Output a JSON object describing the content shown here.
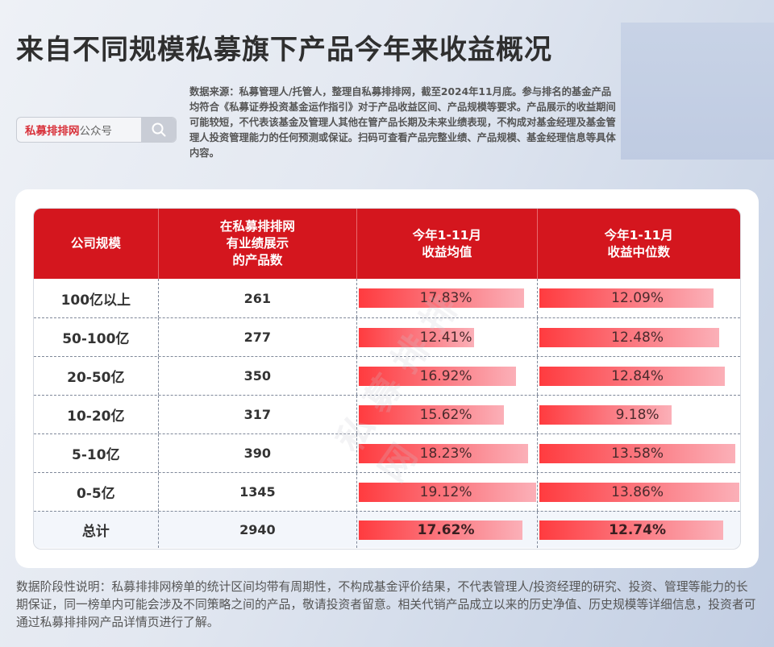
{
  "title": "来自不同规模私募旗下产品今年来收益概况",
  "search": {
    "brand": "私募排排网",
    "suffix": "公众号",
    "icon": "search-icon"
  },
  "source_note": "数据来源：私募管理人/托管人，整理自私募排排网，截至2024年11月底。参与排名的基金产品均符合《私募证券投资基金运作指引》对于产品收益区间、产品规模等要求。产品展示的收益期间可能较短，不代表该基金及管理人其他在管产品长期及未来业绩表现，不构成对基金经理及基金管理人投资管理能力的任何预测或保证。扫码可查看产品完整业绩、产品规模、基金经理信息等具体内容。",
  "table": {
    "headers": [
      "公司规模",
      "在私募排排网\n有业绩展示\n的产品数",
      "今年1-11月\n收益均值",
      "今年1-11月\n收益中位数"
    ],
    "rows": [
      {
        "scale": "100亿以上",
        "count": "261",
        "mean": "17.83%",
        "median": "12.09%"
      },
      {
        "scale": "50-100亿",
        "count": "277",
        "mean": "12.41%",
        "median": "12.48%"
      },
      {
        "scale": "20-50亿",
        "count": "350",
        "mean": "16.92%",
        "median": "12.84%"
      },
      {
        "scale": "10-20亿",
        "count": "317",
        "mean": "15.62%",
        "median": "9.18%"
      },
      {
        "scale": "5-10亿",
        "count": "390",
        "mean": "18.23%",
        "median": "13.58%"
      },
      {
        "scale": "0-5亿",
        "count": "1345",
        "mean": "19.12%",
        "median": "13.86%"
      },
      {
        "scale": "总计",
        "count": "2940",
        "mean": "17.62%",
        "median": "12.74%"
      }
    ]
  },
  "watermark": "私募排排网",
  "footer": "数据阶段性说明：私募排排网榜单的统计区间均带有周期性，不构成基金评价结果，不代表管理人/投资经理的研究、投资、管理等能力的长期保证，同一榜单内可能会涉及不同策略之间的产品，敬请投资者留意。相关代销产品成立以来的历史净值、历史规模等详细信息，投资者可通过私募排排网产品详情页进行了解。",
  "colors": {
    "header_red": "#d4161e",
    "bar_start": "#ff3b3f",
    "bar_end": "#fbb0b8",
    "brand_red": "#d8313a"
  },
  "chart_data": {
    "type": "table",
    "title": "来自不同规模私募旗下产品今年来收益概况",
    "categories": [
      "100亿以上",
      "50-100亿",
      "20-50亿",
      "10-20亿",
      "5-10亿",
      "0-5亿",
      "总计"
    ],
    "columns": [
      "公司规模",
      "在私募排排网有业绩展示的产品数",
      "今年1-11月收益均值",
      "今年1-11月收益中位数"
    ],
    "series": [
      {
        "name": "在私募排排网有业绩展示的产品数",
        "values": [
          261,
          277,
          350,
          317,
          390,
          1345,
          2940
        ]
      },
      {
        "name": "今年1-11月收益均值(%)",
        "values": [
          17.83,
          12.41,
          16.92,
          15.62,
          18.23,
          19.12,
          17.62
        ]
      },
      {
        "name": "今年1-11月收益中位数(%)",
        "values": [
          12.09,
          12.48,
          12.84,
          9.18,
          13.58,
          13.86,
          12.74
        ]
      }
    ],
    "bar_max": {
      "mean": 19.12,
      "median": 13.86
    }
  }
}
